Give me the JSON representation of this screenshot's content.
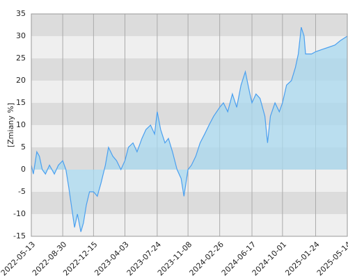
{
  "chart_data": {
    "type": "area",
    "y_label": "[Zmiany %]",
    "x": [
      "2022-05-13",
      "2022-05-20",
      "2022-06-01",
      "2022-06-10",
      "2022-06-20",
      "2022-07-01",
      "2022-07-15",
      "2022-08-01",
      "2022-08-15",
      "2022-08-30",
      "2022-09-10",
      "2022-09-20",
      "2022-10-01",
      "2022-10-10",
      "2022-10-20",
      "2022-11-01",
      "2022-11-10",
      "2022-11-20",
      "2022-12-01",
      "2022-12-15",
      "2022-12-28",
      "2023-01-10",
      "2023-01-25",
      "2023-02-05",
      "2023-02-20",
      "2023-03-05",
      "2023-03-20",
      "2023-04-03",
      "2023-04-15",
      "2023-05-01",
      "2023-05-15",
      "2023-06-01",
      "2023-06-15",
      "2023-07-01",
      "2023-07-15",
      "2023-07-24",
      "2023-08-05",
      "2023-08-20",
      "2023-09-01",
      "2023-09-15",
      "2023-10-01",
      "2023-10-15",
      "2023-10-25",
      "2023-11-08",
      "2023-11-20",
      "2023-12-05",
      "2023-12-20",
      "2024-01-05",
      "2024-01-20",
      "2024-02-05",
      "2024-02-26",
      "2024-03-10",
      "2024-03-25",
      "2024-04-10",
      "2024-04-25",
      "2024-05-10",
      "2024-05-25",
      "2024-06-10",
      "2024-06-17",
      "2024-07-01",
      "2024-07-15",
      "2024-08-01",
      "2024-08-10",
      "2024-08-20",
      "2024-09-05",
      "2024-09-20",
      "2024-10-01",
      "2024-10-15",
      "2024-11-01",
      "2024-11-15",
      "2024-11-25",
      "2024-12-05",
      "2024-12-15",
      "2024-12-20",
      "2025-01-10",
      "2025-01-24",
      "2025-02-15",
      "2025-03-10",
      "2025-04-01",
      "2025-04-20",
      "2025-05-14"
    ],
    "values": [
      1,
      -1,
      4,
      3,
      0,
      -1,
      1,
      -1,
      1,
      2,
      0,
      -4,
      -9,
      -13,
      -10,
      -14,
      -12,
      -8,
      -5,
      -5,
      -6,
      -3,
      1,
      5,
      3,
      2,
      0,
      2,
      5,
      6,
      4,
      7,
      9,
      10,
      8,
      13,
      9,
      6,
      7,
      4,
      0,
      -2,
      -6,
      0,
      1,
      3,
      6,
      8,
      10,
      12,
      14,
      15,
      13,
      17,
      14,
      19,
      22,
      17,
      15,
      17,
      16,
      12,
      6,
      12,
      15,
      13,
      15,
      19,
      20,
      23,
      26,
      32,
      30,
      26,
      26,
      26.5,
      27,
      27.5,
      28,
      29,
      30
    ],
    "line_color": "#4a9fef",
    "fill_color": "#a8d8ef",
    "xlim": [
      "2022-05-13",
      "2025-05-14"
    ],
    "xticks": [
      "2022-05-13",
      "2022-08-30",
      "2022-12-15",
      "2023-04-03",
      "2023-07-24",
      "2023-11-08",
      "2024-02-26",
      "2024-06-17",
      "2024-10-01",
      "2025-01-24",
      "2025-05-14"
    ],
    "ylim": [
      -15,
      35
    ],
    "yticks": [
      -15,
      -10,
      -5,
      0,
      5,
      10,
      15,
      20,
      25,
      30,
      35
    ],
    "grid": true
  }
}
